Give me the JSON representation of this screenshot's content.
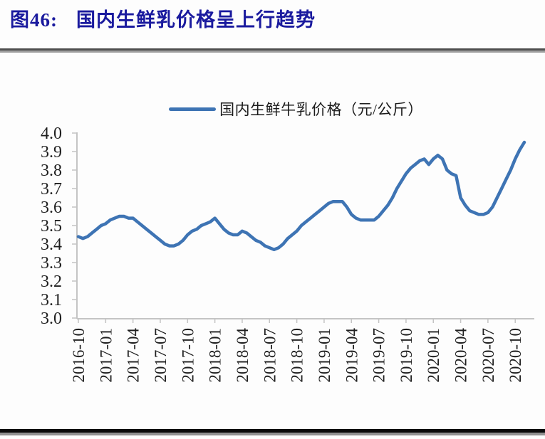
{
  "figure": {
    "label": "图46:",
    "title": "国内生鲜乳价格呈上行趋势"
  },
  "legend": {
    "series_label": "国内生鲜牛乳价格（元/公斤）"
  },
  "colors": {
    "line": "#3e74b4",
    "title": "#1a1a9e",
    "axis": "#c4c4c4",
    "tick_text": "#1f1f1f",
    "rule_top_dark": "#4f4f4f",
    "rule_top_light": "#a0a0a0",
    "rule_bottom_black": "#0a0a0a",
    "rule_bottom_gray": "#909090"
  },
  "chart_data": {
    "type": "line",
    "title": "国内生鲜牛乳价格（元/公斤）",
    "legend_position": "top-center",
    "grid": false,
    "ylim": [
      3.0,
      4.0
    ],
    "y_tick_labels": [
      "4.0",
      "3.9",
      "3.8",
      "3.7",
      "3.6",
      "3.5",
      "3.4",
      "3.3",
      "3.2",
      "3.1",
      "3.0"
    ],
    "x_tick_labels": [
      "2016-10",
      "2017-01",
      "2017-04",
      "2017-07",
      "2017-10",
      "2018-01",
      "2018-04",
      "2018-07",
      "2018-10",
      "2019-01",
      "2019-04",
      "2019-07",
      "2019-10",
      "2020-01",
      "2020-04",
      "2020-07",
      "2020-10"
    ],
    "x_unit": "months since 2016-10, samples every 0.5 month",
    "x_start_month": 0,
    "x_step_months": 0.5,
    "x_end_month": 49,
    "series": [
      {
        "name": "国内生鲜牛乳价格（元/公斤）",
        "color": "#3e74b4",
        "values": [
          3.44,
          3.43,
          3.44,
          3.46,
          3.48,
          3.5,
          3.51,
          3.53,
          3.54,
          3.55,
          3.55,
          3.54,
          3.54,
          3.52,
          3.5,
          3.48,
          3.46,
          3.44,
          3.42,
          3.4,
          3.39,
          3.39,
          3.4,
          3.42,
          3.45,
          3.47,
          3.48,
          3.5,
          3.51,
          3.52,
          3.54,
          3.51,
          3.48,
          3.46,
          3.45,
          3.45,
          3.47,
          3.46,
          3.44,
          3.42,
          3.41,
          3.39,
          3.38,
          3.37,
          3.38,
          3.4,
          3.43,
          3.45,
          3.47,
          3.5,
          3.52,
          3.54,
          3.56,
          3.58,
          3.6,
          3.62,
          3.63,
          3.63,
          3.63,
          3.6,
          3.56,
          3.54,
          3.53,
          3.53,
          3.53,
          3.53,
          3.55,
          3.58,
          3.61,
          3.65,
          3.7,
          3.74,
          3.78,
          3.81,
          3.83,
          3.85,
          3.86,
          3.83,
          3.86,
          3.88,
          3.86,
          3.8,
          3.78,
          3.77,
          3.65,
          3.61,
          3.58,
          3.57,
          3.56,
          3.56,
          3.57,
          3.6,
          3.65,
          3.7,
          3.75,
          3.8,
          3.86,
          3.91,
          3.95
        ]
      }
    ]
  }
}
